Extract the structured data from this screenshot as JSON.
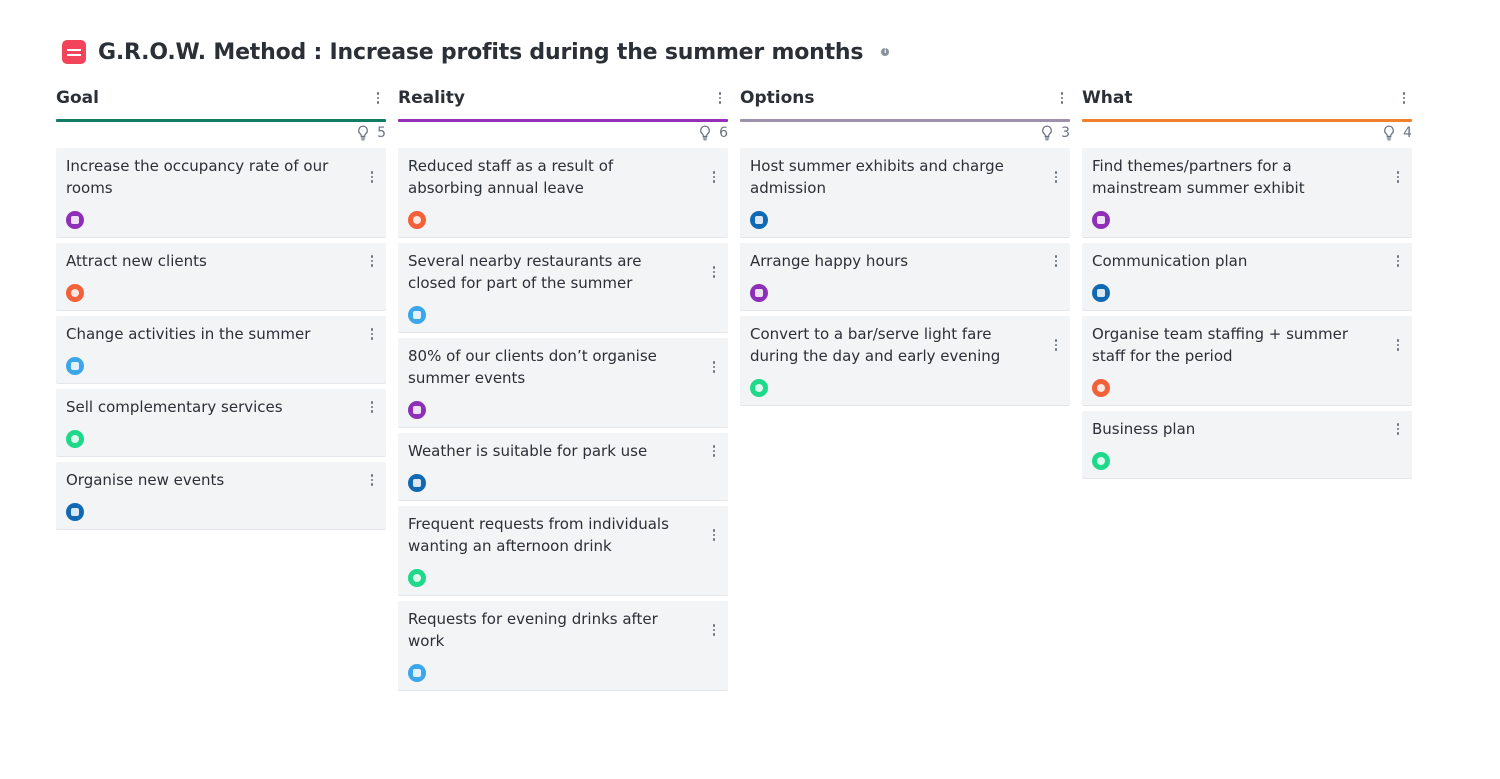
{
  "board": {
    "title": "G.R.O.W. Method : Increase profits during the summer months",
    "logo_icon": "app-logo-icon",
    "info_icon": "info-icon"
  },
  "colors": {
    "purple": "#8e2fb8",
    "orange": "#f2613a",
    "lightblue": "#3ba6ec",
    "darkblue": "#1169b3",
    "green": "#1ed98a"
  },
  "columns": [
    {
      "title": "Goal",
      "color": "#137a63",
      "count": "5",
      "cards": [
        {
          "text": "Increase the occupancy rate of our rooms",
          "avatar": "purple"
        },
        {
          "text": "Attract new clients",
          "avatar": "orange"
        },
        {
          "text": "Change activities in the summer",
          "avatar": "lightblue"
        },
        {
          "text": "Sell complementary services",
          "avatar": "green"
        },
        {
          "text": "Organise new events",
          "avatar": "darkblue"
        }
      ]
    },
    {
      "title": "Reality",
      "color": "#962fb8",
      "count": "6",
      "cards": [
        {
          "text": "Reduced staff as a result of absorbing annual leave",
          "avatar": "orange"
        },
        {
          "text": "Several nearby restaurants are closed for part of the summer",
          "avatar": "lightblue"
        },
        {
          "text": "80% of our clients don’t organise summer events",
          "avatar": "purple"
        },
        {
          "text": "Weather is suitable for park use",
          "avatar": "darkblue"
        },
        {
          "text": "Frequent requests from individuals wanting an afternoon drink",
          "avatar": "green"
        },
        {
          "text": "Requests for evening drinks after work",
          "avatar": "lightblue"
        }
      ]
    },
    {
      "title": "Options",
      "color": "#9c90aa",
      "count": "3",
      "cards": [
        {
          "text": "Host summer exhibits and charge admission",
          "avatar": "darkblue"
        },
        {
          "text": "Arrange happy hours",
          "avatar": "purple"
        },
        {
          "text": "Convert to a bar/serve light fare during the day and early evening",
          "avatar": "green"
        }
      ]
    },
    {
      "title": "What",
      "color": "#f0802a",
      "count": "4",
      "cards": [
        {
          "text": "Find themes/partners for a mainstream summer exhibit",
          "avatar": "purple"
        },
        {
          "text": "Communication plan",
          "avatar": "darkblue"
        },
        {
          "text": "Organise team staffing + summer staff for the period",
          "avatar": "orange"
        },
        {
          "text": "Business plan",
          "avatar": "green"
        }
      ]
    }
  ]
}
